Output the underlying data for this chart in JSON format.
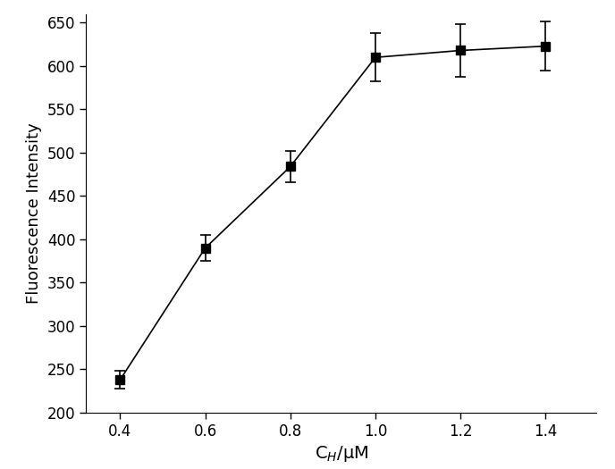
{
  "x": [
    0.4,
    0.6,
    0.8,
    1.0,
    1.2,
    1.4
  ],
  "y": [
    238,
    390,
    484,
    610,
    618,
    623
  ],
  "yerr": [
    10,
    15,
    18,
    28,
    30,
    28
  ],
  "xlabel": "C$_{H}$/μM",
  "ylabel": "Fluorescence Intensity",
  "xlim": [
    0.32,
    1.52
  ],
  "ylim": [
    200,
    660
  ],
  "yticks": [
    200,
    250,
    300,
    350,
    400,
    450,
    500,
    550,
    600,
    650
  ],
  "xticks": [
    0.4,
    0.6,
    0.8,
    1.0,
    1.2,
    1.4
  ],
  "marker": "s",
  "markersize": 7,
  "color": "black",
  "linewidth": 1.2,
  "capsize": 4,
  "elinewidth": 1.2,
  "background_color": "#ffffff",
  "xlabel_fontsize": 14,
  "ylabel_fontsize": 13,
  "tick_labelsize": 12
}
